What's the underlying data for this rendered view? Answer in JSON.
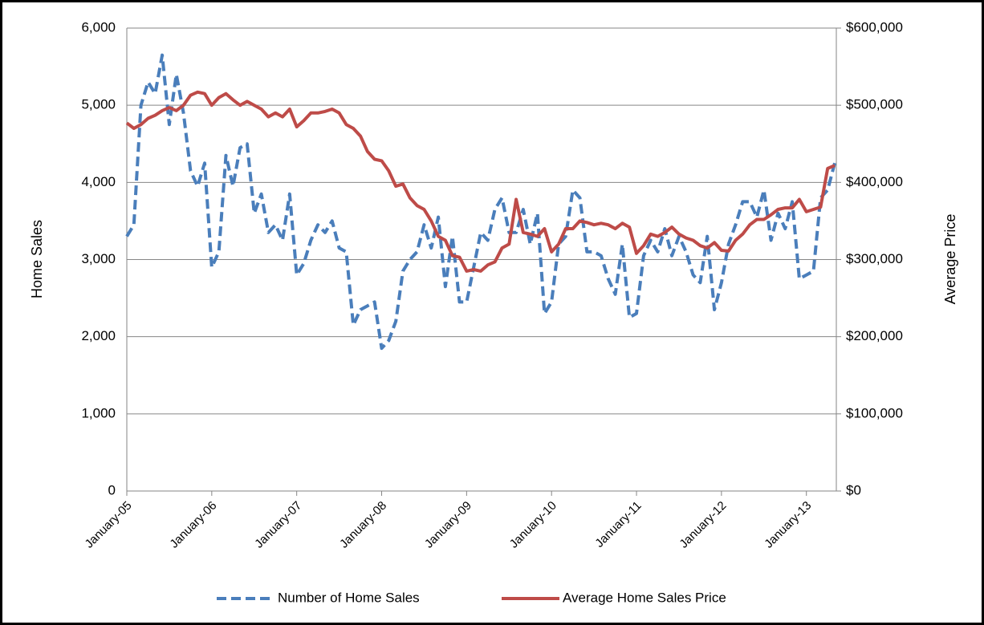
{
  "chart_data": {
    "type": "line",
    "categories": [
      "January-05",
      null,
      null,
      null,
      null,
      null,
      null,
      null,
      null,
      null,
      null,
      null,
      "January-06",
      null,
      null,
      null,
      null,
      null,
      null,
      null,
      null,
      null,
      null,
      null,
      "January-07",
      null,
      null,
      null,
      null,
      null,
      null,
      null,
      null,
      null,
      null,
      null,
      "January-08",
      null,
      null,
      null,
      null,
      null,
      null,
      null,
      null,
      null,
      null,
      null,
      "January-09",
      null,
      null,
      null,
      null,
      null,
      null,
      null,
      null,
      null,
      null,
      null,
      "January-10",
      null,
      null,
      null,
      null,
      null,
      null,
      null,
      null,
      null,
      null,
      null,
      "January-11",
      null,
      null,
      null,
      null,
      null,
      null,
      null,
      null,
      null,
      null,
      null,
      "January-12",
      null,
      null,
      null,
      null,
      null,
      null,
      null,
      null,
      null,
      null,
      null,
      "January-13",
      null,
      null,
      null,
      null
    ],
    "series": [
      {
        "name": "Number of Home Sales",
        "color": "#4a7ebb",
        "line_style": "dashed",
        "axis": "y",
        "values": [
          3300,
          3450,
          5000,
          5300,
          5150,
          5650,
          4750,
          5400,
          4900,
          4150,
          3950,
          4250,
          2900,
          3100,
          4350,
          3950,
          4450,
          4500,
          3600,
          3850,
          3350,
          3450,
          3250,
          3850,
          2800,
          2950,
          3250,
          3450,
          3350,
          3500,
          3150,
          3100,
          2150,
          2350,
          2400,
          2450,
          1850,
          1950,
          2200,
          2850,
          3000,
          3100,
          3450,
          3150,
          3550,
          2650,
          3300,
          2450,
          2450,
          2900,
          3350,
          3250,
          3650,
          3800,
          3350,
          3350,
          3650,
          3200,
          3600,
          2300,
          2450,
          3200,
          3300,
          3900,
          3800,
          3100,
          3100,
          3050,
          2750,
          2550,
          3200,
          2250,
          2300,
          3050,
          3250,
          3100,
          3400,
          3050,
          3300,
          3100,
          2800,
          2700,
          3300,
          2350,
          2700,
          3200,
          3450,
          3750,
          3750,
          3550,
          3900,
          3250,
          3600,
          3400,
          3750,
          2750,
          2800,
          2850,
          3800,
          3900,
          4250
        ]
      },
      {
        "name": "Average Home Sales Price",
        "color": "#be4b48",
        "line_style": "solid",
        "axis": "y2",
        "values": [
          477000,
          470000,
          475000,
          483000,
          487000,
          493000,
          497000,
          493000,
          500000,
          513000,
          517000,
          515000,
          500000,
          510000,
          515000,
          507000,
          500000,
          505000,
          500000,
          495000,
          485000,
          490000,
          485000,
          495000,
          472000,
          480000,
          490000,
          490000,
          492000,
          495000,
          490000,
          475000,
          470000,
          460000,
          440000,
          430000,
          428000,
          415000,
          395000,
          398000,
          380000,
          370000,
          365000,
          350000,
          330000,
          325000,
          305000,
          303000,
          285000,
          287000,
          285000,
          293000,
          297000,
          315000,
          320000,
          378000,
          335000,
          333000,
          330000,
          340000,
          310000,
          320000,
          340000,
          340000,
          350000,
          348000,
          345000,
          347000,
          345000,
          340000,
          347000,
          342000,
          308000,
          318000,
          333000,
          330000,
          335000,
          342000,
          333000,
          328000,
          325000,
          318000,
          315000,
          322000,
          312000,
          311000,
          325000,
          333000,
          345000,
          352000,
          352000,
          358000,
          365000,
          367000,
          367000,
          378000,
          362000,
          365000,
          368000,
          418000,
          422000
        ]
      }
    ],
    "y_label": "Home Sales",
    "y2_label": "Average Price",
    "ylim": [
      0,
      6000
    ],
    "yticks": [
      0,
      {
        "value": 1000,
        "label": "1,000"
      },
      {
        "value": 2000,
        "label": "2,000"
      },
      {
        "value": 3000,
        "label": "3,000"
      },
      {
        "value": 4000,
        "label": "4,000"
      },
      {
        "value": 5000,
        "label": "5,000"
      },
      {
        "value": 6000,
        "label": "6,000"
      }
    ],
    "y2lim": [
      0,
      600000
    ],
    "y2ticks": [
      {
        "value": 0,
        "label": "$0"
      },
      {
        "value": 100000,
        "label": "$100,000"
      },
      {
        "value": 200000,
        "label": "$200,000"
      },
      {
        "value": 300000,
        "label": "$300,000"
      },
      {
        "value": 400000,
        "label": "$400,000"
      },
      {
        "value": 500000,
        "label": "$500,000"
      },
      {
        "value": 600000,
        "label": "$600,000"
      }
    ],
    "grid": true,
    "legend": "bottom"
  }
}
